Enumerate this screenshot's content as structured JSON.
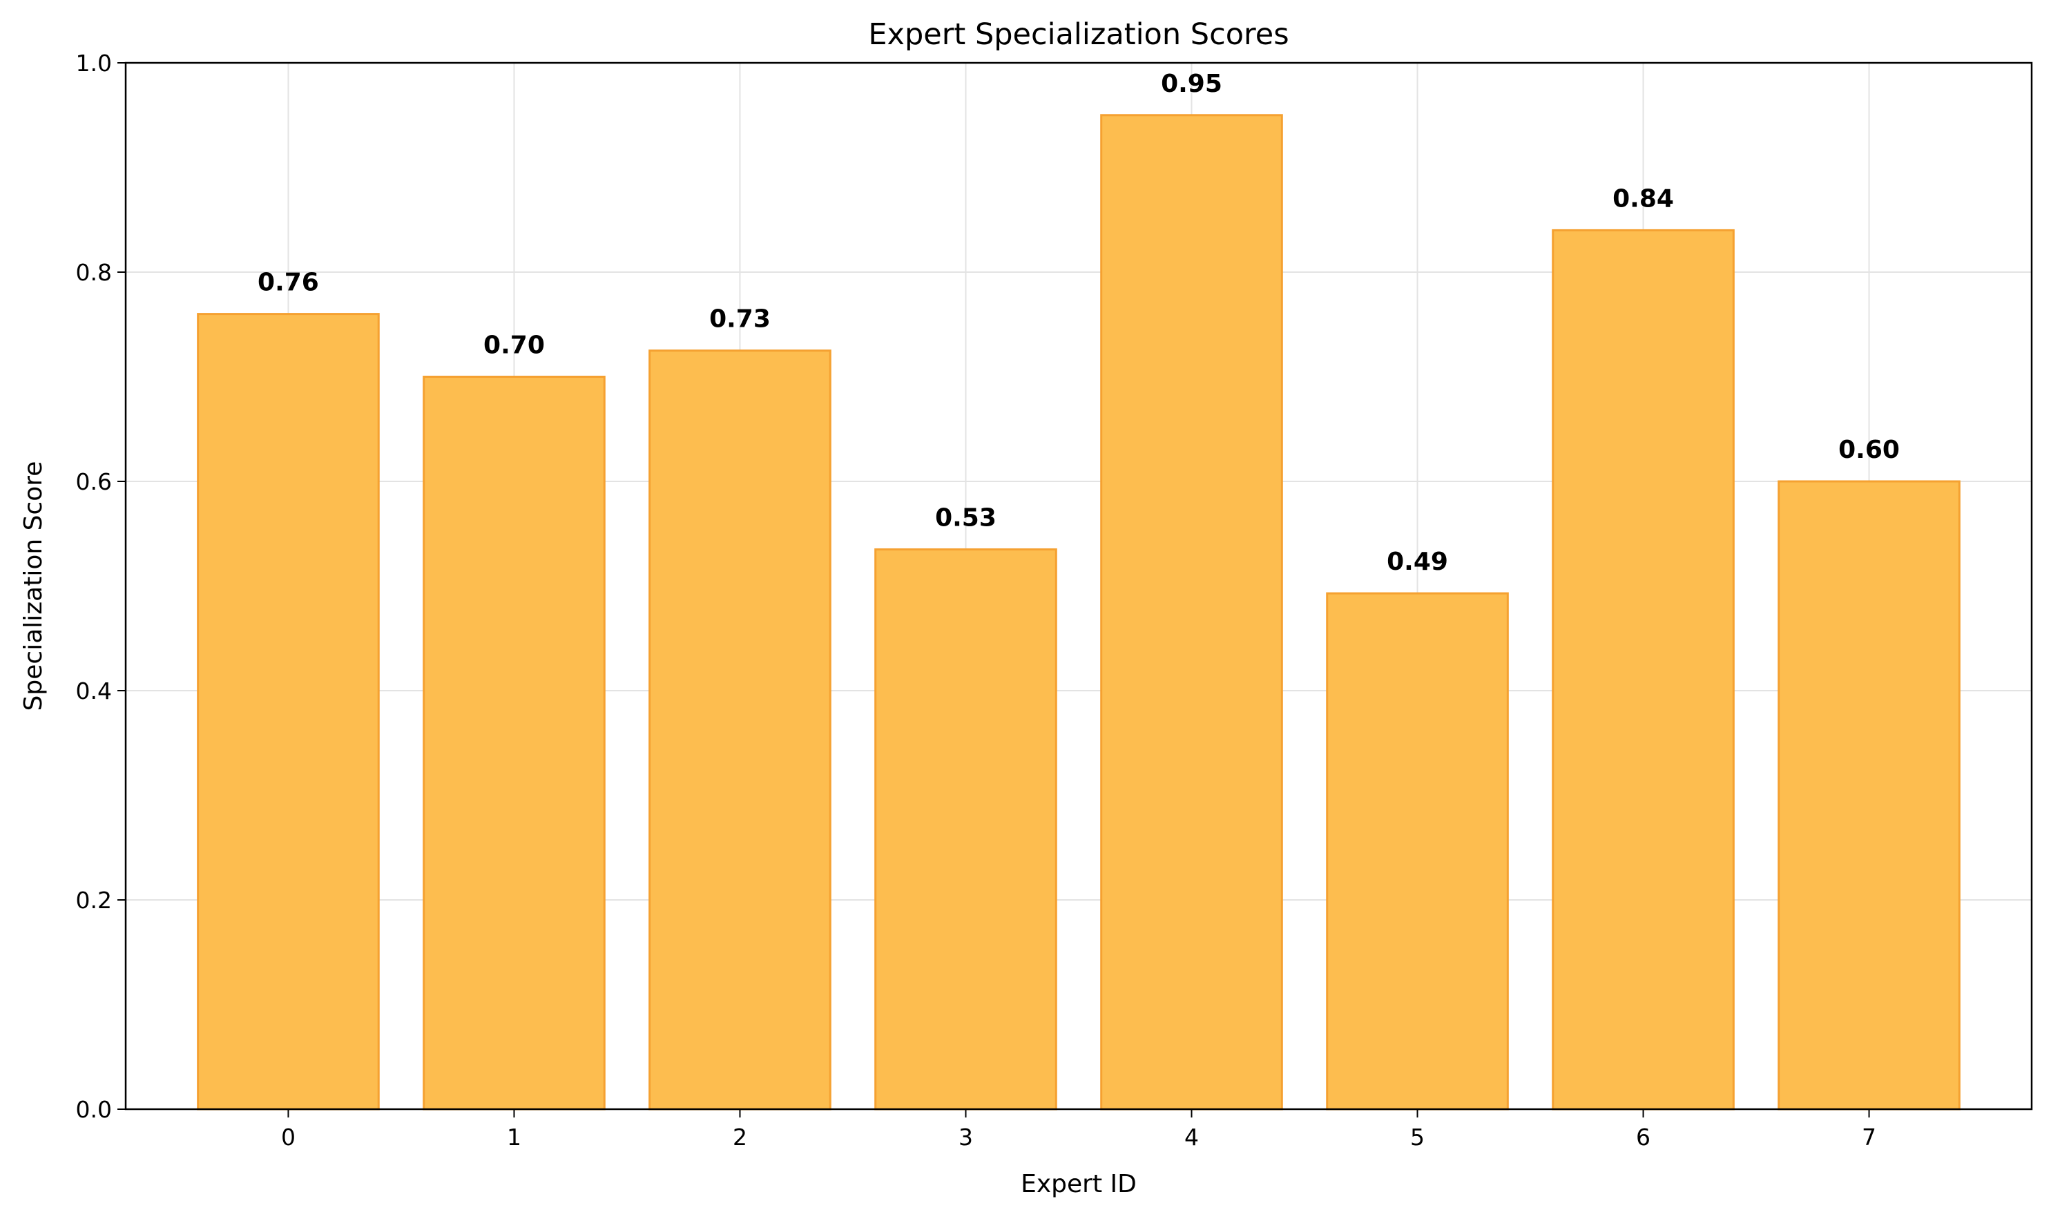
{
  "chart_data": {
    "type": "bar",
    "title": "Expert Specialization Scores",
    "xlabel": "Expert ID",
    "ylabel": "Specialization Score",
    "categories": [
      "0",
      "1",
      "2",
      "3",
      "4",
      "5",
      "6",
      "7"
    ],
    "values": [
      0.76,
      0.7,
      0.725,
      0.535,
      0.95,
      0.493,
      0.84,
      0.6
    ],
    "value_labels": [
      "0.76",
      "0.70",
      "0.73",
      "0.53",
      "0.95",
      "0.49",
      "0.84",
      "0.60"
    ],
    "ylim": [
      0,
      1.0
    ],
    "yticks": [
      "0.0",
      "0.2",
      "0.4",
      "0.6",
      "0.8",
      "1.0"
    ],
    "grid": true,
    "bar_color": "#fdbd4f",
    "bar_edge_color": "#f5a131"
  }
}
